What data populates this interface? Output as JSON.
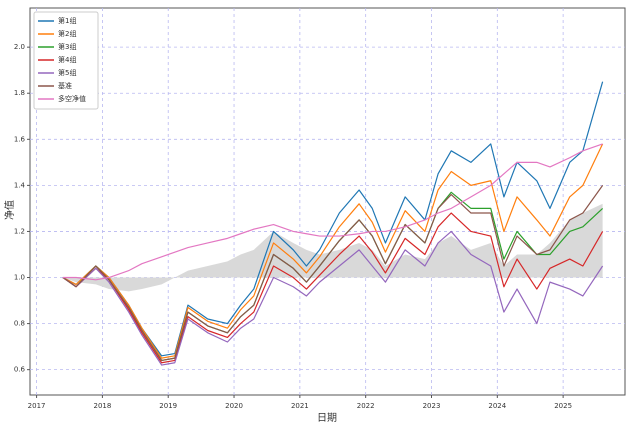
{
  "chart_data": {
    "type": "line",
    "xlabel": "日期",
    "ylabel": "净值",
    "x": [
      2017.4,
      2017.6,
      2017.9,
      2018.1,
      2018.4,
      2018.6,
      2018.9,
      2019.1,
      2019.3,
      2019.6,
      2019.9,
      2020.1,
      2020.3,
      2020.6,
      2020.9,
      2021.1,
      2021.3,
      2021.6,
      2021.9,
      2022.1,
      2022.3,
      2022.6,
      2022.9,
      2023.1,
      2023.3,
      2023.6,
      2023.9,
      2024.1,
      2024.3,
      2024.6,
      2024.8,
      2025.1,
      2025.3,
      2025.6
    ],
    "xlim": [
      2016.9,
      2025.94
    ],
    "xticks": [
      2017,
      2018,
      2019,
      2020,
      2021,
      2022,
      2023,
      2024,
      2025
    ],
    "ylim": [
      0.49,
      2.17
    ],
    "yticks": [
      0.6,
      0.8,
      {
        "value": 1,
        "label": "1.0"
      },
      1.2,
      1.4,
      1.6,
      1.8,
      {
        "value": 2,
        "label": "2.0"
      }
    ],
    "grid": true,
    "legend": "upper left",
    "fill_area": {
      "color": "#d9d9d9",
      "baseline": 1,
      "values": [
        1.0,
        0.98,
        0.97,
        0.95,
        0.94,
        0.95,
        0.97,
        1.0,
        1.03,
        1.05,
        1.07,
        1.1,
        1.12,
        1.2,
        1.15,
        1.12,
        1.1,
        1.12,
        1.15,
        1.12,
        1.05,
        1.1,
        1.08,
        1.15,
        1.18,
        1.12,
        1.15,
        1.05,
        1.1,
        1.1,
        1.15,
        1.25,
        1.28,
        1.32
      ]
    },
    "series": [
      {
        "name": "第1组",
        "color": "#1f77b4",
        "values": [
          1.0,
          0.97,
          1.05,
          1.0,
          0.88,
          0.78,
          0.66,
          0.67,
          0.88,
          0.82,
          0.8,
          0.88,
          0.95,
          1.2,
          1.12,
          1.05,
          1.12,
          1.28,
          1.38,
          1.3,
          1.15,
          1.35,
          1.25,
          1.45,
          1.55,
          1.5,
          1.58,
          1.35,
          1.5,
          1.42,
          1.3,
          1.5,
          1.55,
          1.85
        ]
      },
      {
        "name": "第2组",
        "color": "#ff7f0e",
        "values": [
          1.0,
          0.97,
          1.05,
          1.0,
          0.88,
          0.78,
          0.65,
          0.66,
          0.87,
          0.81,
          0.78,
          0.86,
          0.92,
          1.15,
          1.08,
          1.02,
          1.09,
          1.22,
          1.32,
          1.24,
          1.11,
          1.29,
          1.2,
          1.38,
          1.46,
          1.4,
          1.42,
          1.2,
          1.35,
          1.25,
          1.18,
          1.35,
          1.4,
          1.58
        ]
      },
      {
        "name": "第3组",
        "color": "#2ca02c",
        "values": [
          1.0,
          0.96,
          1.05,
          0.99,
          0.87,
          0.77,
          0.64,
          0.65,
          0.85,
          0.79,
          0.76,
          0.83,
          0.88,
          1.1,
          1.04,
          0.98,
          1.05,
          1.16,
          1.25,
          1.18,
          1.06,
          1.23,
          1.15,
          1.3,
          1.37,
          1.3,
          1.3,
          1.08,
          1.2,
          1.1,
          1.1,
          1.2,
          1.22,
          1.3
        ]
      },
      {
        "name": "第4组",
        "color": "#d62728",
        "values": [
          1.0,
          0.96,
          1.04,
          0.99,
          0.86,
          0.76,
          0.63,
          0.64,
          0.83,
          0.77,
          0.74,
          0.8,
          0.85,
          1.05,
          1.0,
          0.95,
          1.01,
          1.1,
          1.18,
          1.11,
          1.02,
          1.17,
          1.1,
          1.22,
          1.28,
          1.2,
          1.18,
          0.96,
          1.08,
          0.95,
          1.04,
          1.08,
          1.05,
          1.2
        ]
      },
      {
        "name": "第5组",
        "color": "#9467bd",
        "values": [
          1.0,
          0.96,
          1.04,
          0.98,
          0.85,
          0.75,
          0.62,
          0.63,
          0.82,
          0.76,
          0.72,
          0.78,
          0.82,
          1.0,
          0.96,
          0.92,
          0.98,
          1.05,
          1.12,
          1.05,
          0.98,
          1.12,
          1.05,
          1.15,
          1.2,
          1.1,
          1.05,
          0.85,
          0.95,
          0.8,
          0.98,
          0.95,
          0.92,
          1.05
        ]
      },
      {
        "name": "基准",
        "color": "#8c564b",
        "values": [
          1.0,
          0.96,
          1.05,
          0.99,
          0.87,
          0.77,
          0.64,
          0.65,
          0.85,
          0.79,
          0.76,
          0.83,
          0.88,
          1.1,
          1.04,
          0.98,
          1.05,
          1.16,
          1.25,
          1.18,
          1.06,
          1.23,
          1.15,
          1.3,
          1.36,
          1.28,
          1.28,
          1.05,
          1.18,
          1.1,
          1.12,
          1.25,
          1.28,
          1.4
        ]
      },
      {
        "name": "多空净值",
        "color": "#e377c2",
        "values": [
          1.0,
          1.0,
          0.99,
          1.0,
          1.03,
          1.06,
          1.09,
          1.11,
          1.13,
          1.15,
          1.17,
          1.19,
          1.21,
          1.23,
          1.2,
          1.19,
          1.18,
          1.18,
          1.19,
          1.2,
          1.2,
          1.22,
          1.25,
          1.28,
          1.3,
          1.35,
          1.4,
          1.45,
          1.5,
          1.5,
          1.48,
          1.52,
          1.55,
          1.58
        ]
      }
    ]
  }
}
